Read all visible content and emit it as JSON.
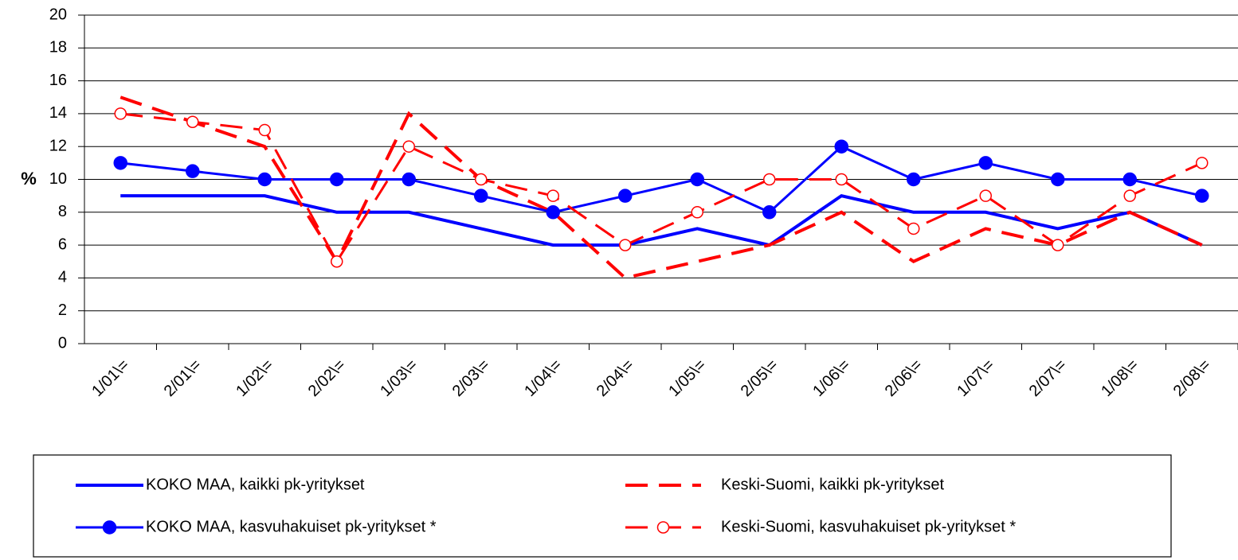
{
  "chart_data": {
    "type": "line",
    "y_label": "%",
    "categories": [
      "1/01\\=",
      "2/01\\=",
      "1/02\\=",
      "2/02\\=",
      "1/03\\=",
      "2/03\\=",
      "1/04\\=",
      "2/04\\=",
      "1/05\\=",
      "2/05\\=",
      "1/06\\=",
      "2/06\\=",
      "1/07\\=",
      "2/07\\=",
      "1/08\\=",
      "2/08\\="
    ],
    "series": [
      {
        "name": "KOKO MAA, kaikki pk-yritykset",
        "color": "#0000ff",
        "dash": false,
        "marker": "none",
        "values": [
          9,
          9,
          9,
          8,
          8,
          7,
          6,
          6,
          7,
          6,
          9,
          8,
          8,
          7,
          8,
          6
        ]
      },
      {
        "name": "Keski-Suomi, kaikki pk-yritykset",
        "color": "#ff0000",
        "dash": true,
        "marker": "none",
        "values": [
          15,
          13.5,
          12,
          5,
          14,
          10,
          8,
          4,
          5,
          6,
          8,
          5,
          7,
          6,
          8,
          6
        ]
      },
      {
        "name": "KOKO MAA, kasvuhakuiset pk-yritykset *",
        "color": "#0000ff",
        "dash": false,
        "marker": "filled-circle",
        "values": [
          11,
          10.5,
          10,
          10,
          10,
          9,
          8,
          9,
          10,
          8,
          12,
          10,
          11,
          10,
          10,
          9
        ]
      },
      {
        "name": "Keski-Suomi, kasvuhakuiset pk-yritykset *",
        "color": "#ff0000",
        "dash": true,
        "marker": "open-circle",
        "values": [
          14,
          13.5,
          13,
          5,
          12,
          10,
          9,
          6,
          8,
          10,
          10,
          7,
          9,
          6,
          9,
          11
        ]
      }
    ],
    "ylim": [
      0,
      20
    ],
    "yticks": [
      0,
      2,
      4,
      6,
      8,
      10,
      12,
      14,
      16,
      18,
      20
    ],
    "grid": true
  }
}
